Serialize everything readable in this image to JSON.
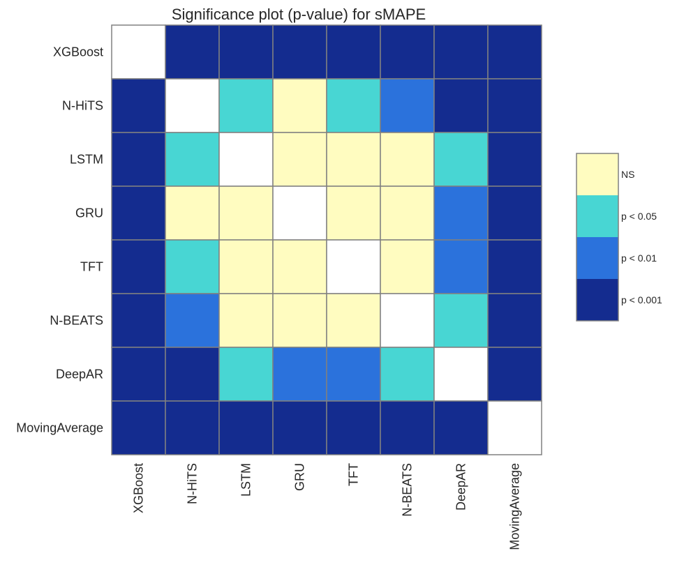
{
  "chart_data": {
    "type": "heatmap",
    "title": "Significance plot (p-value) for sMAPE",
    "row_labels": [
      "XGBoost",
      "N-HiTS",
      "LSTM",
      "GRU",
      "TFT",
      "N-BEATS",
      "DeepAR",
      "MovingAverage"
    ],
    "col_labels": [
      "XGBoost",
      "N-HiTS",
      "LSTM",
      "GRU",
      "TFT",
      "N-BEATS",
      "DeepAR",
      "MovingAverage"
    ],
    "cells": [
      [
        "diagonal",
        "p < 0.001",
        "p < 0.001",
        "p < 0.001",
        "p < 0.001",
        "p < 0.001",
        "p < 0.001",
        "p < 0.001"
      ],
      [
        "p < 0.001",
        "diagonal",
        "p < 0.05",
        "NS",
        "p < 0.05",
        "p < 0.01",
        "p < 0.001",
        "p < 0.001"
      ],
      [
        "p < 0.001",
        "p < 0.05",
        "diagonal",
        "NS",
        "NS",
        "NS",
        "p < 0.05",
        "p < 0.001"
      ],
      [
        "p < 0.001",
        "NS",
        "NS",
        "diagonal",
        "NS",
        "NS",
        "p < 0.01",
        "p < 0.001"
      ],
      [
        "p < 0.001",
        "p < 0.05",
        "NS",
        "NS",
        "diagonal",
        "NS",
        "p < 0.01",
        "p < 0.001"
      ],
      [
        "p < 0.001",
        "p < 0.01",
        "NS",
        "NS",
        "NS",
        "diagonal",
        "p < 0.05",
        "p < 0.001"
      ],
      [
        "p < 0.001",
        "p < 0.001",
        "p < 0.05",
        "p < 0.01",
        "p < 0.01",
        "p < 0.05",
        "diagonal",
        "p < 0.001"
      ],
      [
        "p < 0.001",
        "p < 0.001",
        "p < 0.001",
        "p < 0.001",
        "p < 0.001",
        "p < 0.001",
        "p < 0.001",
        "diagonal"
      ]
    ],
    "legend": [
      {
        "label": "NS",
        "color": "#FFFCC0"
      },
      {
        "label": "p < 0.05",
        "color": "#48D6D3"
      },
      {
        "label": "p < 0.01",
        "color": "#2B72DC"
      },
      {
        "label": "p < 0.001",
        "color": "#142C8F"
      }
    ],
    "diagonal_color": "#FFFFFF",
    "grid_color": "#808080",
    "legend_position": "right"
  }
}
